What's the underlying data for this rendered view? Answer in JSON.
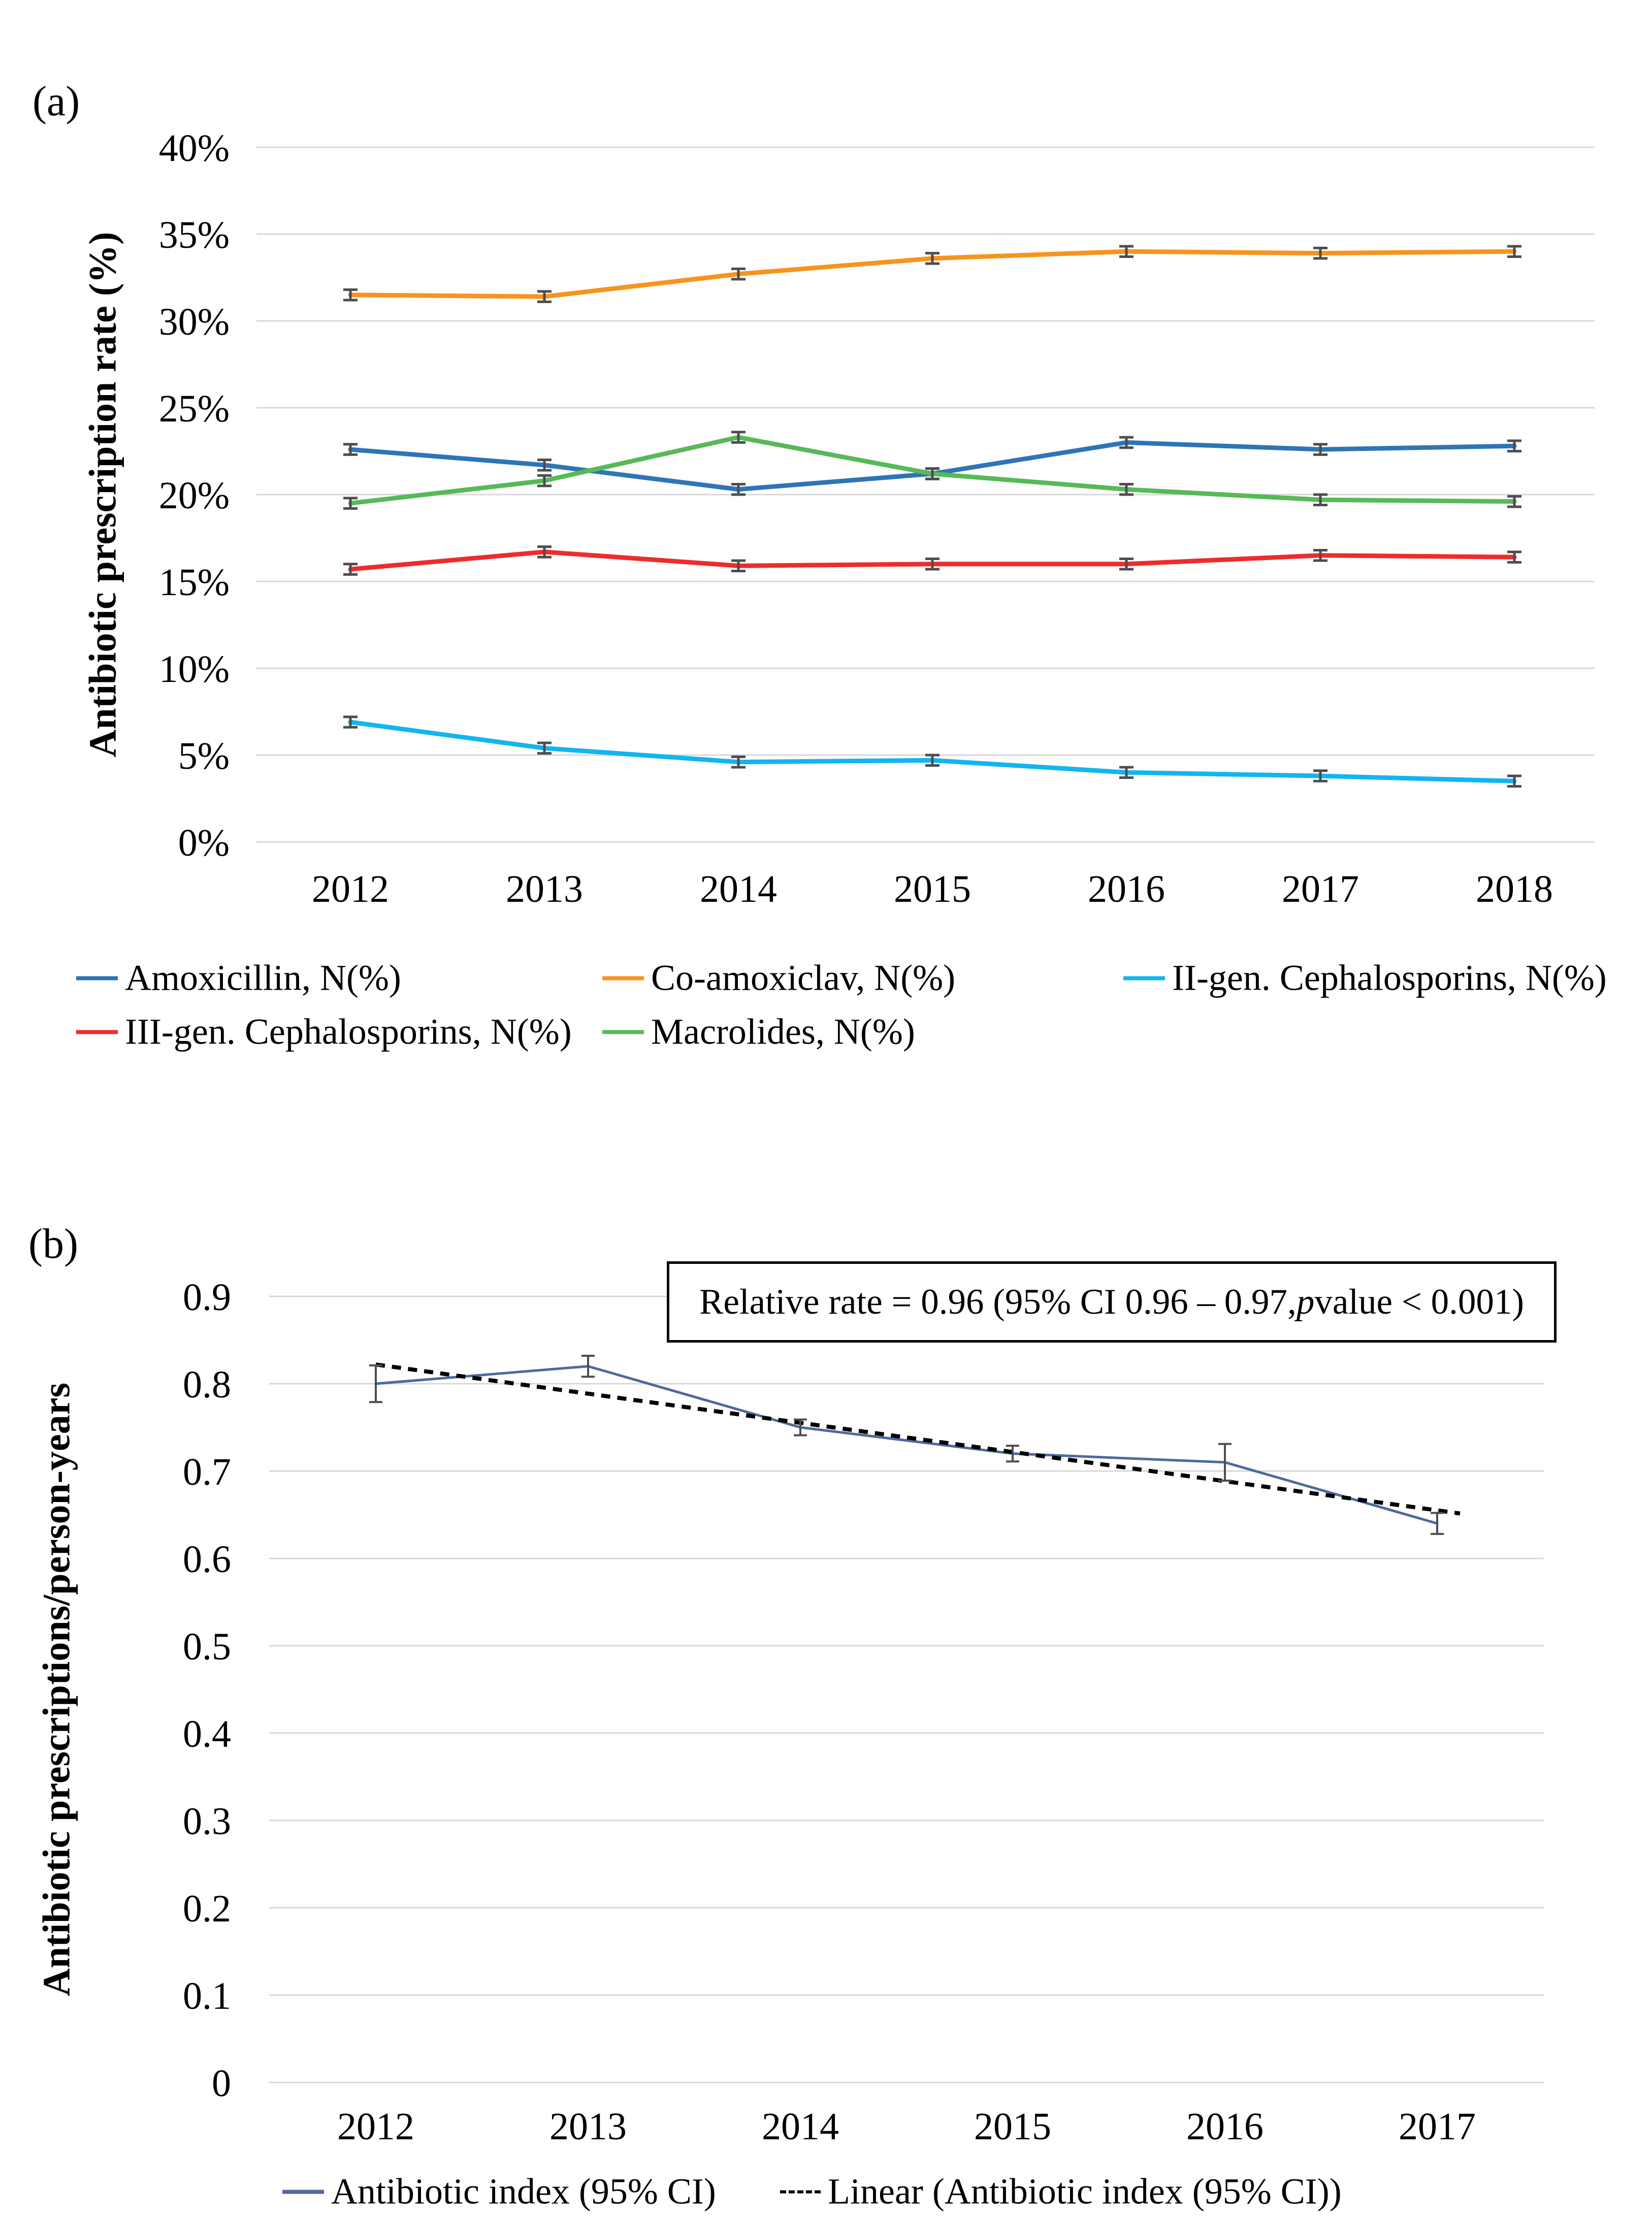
{
  "chart_data": [
    {
      "id": "panel-a",
      "panel_label": "(a)",
      "type": "line",
      "title": "",
      "xlabel": "",
      "ylabel": "Antibiotic prescription rate (%)",
      "x": [
        "2012",
        "2013",
        "2014",
        "2015",
        "2016",
        "2017",
        "2018"
      ],
      "ylim": [
        0,
        40
      ],
      "ytick_labels": [
        "0%",
        "5%",
        "10%",
        "15%",
        "20%",
        "25%",
        "30%",
        "35%",
        "40%"
      ],
      "grid": true,
      "legend_position": "bottom",
      "error_bars": true,
      "series": [
        {
          "name": "Amoxicillin, N(%)",
          "color": "#2E75B6",
          "values": [
            22.6,
            21.7,
            20.3,
            21.2,
            23.0,
            22.6,
            22.8
          ],
          "ci_half": [
            0.3,
            0.3,
            0.3,
            0.3,
            0.3,
            0.3,
            0.3
          ]
        },
        {
          "name": "Co-amoxiclav, N(%)",
          "color": "#F7941E",
          "values": [
            31.5,
            31.4,
            32.7,
            33.6,
            34.0,
            33.9,
            34.0
          ],
          "ci_half": [
            0.3,
            0.3,
            0.3,
            0.3,
            0.3,
            0.3,
            0.3
          ]
        },
        {
          "name": "II-gen. Cephalosporins, N(%)",
          "color": "#12B5F0",
          "values": [
            6.9,
            5.4,
            4.6,
            4.7,
            4.0,
            3.8,
            3.5
          ],
          "ci_half": [
            0.3,
            0.3,
            0.3,
            0.3,
            0.3,
            0.3,
            0.3
          ]
        },
        {
          "name": "III-gen. Cephalosporins, N(%)",
          "color": "#EE2C2C",
          "values": [
            15.7,
            16.7,
            15.9,
            16.0,
            16.0,
            16.5,
            16.4
          ],
          "ci_half": [
            0.3,
            0.3,
            0.3,
            0.3,
            0.3,
            0.3,
            0.3
          ]
        },
        {
          "name": "Macrolides, N(%)",
          "color": "#57B957",
          "values": [
            19.5,
            20.8,
            23.3,
            21.2,
            20.3,
            19.7,
            19.6
          ],
          "ci_half": [
            0.3,
            0.3,
            0.3,
            0.3,
            0.3,
            0.3,
            0.3
          ]
        }
      ]
    },
    {
      "id": "panel-b",
      "panel_label": "(b)",
      "type": "line",
      "title": "",
      "xlabel": "",
      "ylabel": "Antibiotic prescriptions/person-years",
      "x": [
        "2012",
        "2013",
        "2014",
        "2015",
        "2016",
        "2017"
      ],
      "ylim": [
        0,
        0.9
      ],
      "ytick_labels": [
        "0",
        "0.1",
        "0.2",
        "0.3",
        "0.4",
        "0.5",
        "0.6",
        "0.7",
        "0.8",
        "0.9"
      ],
      "grid": true,
      "legend_position": "bottom",
      "error_bars": true,
      "annotation": {
        "prefix": "Relative rate = 0.96 (95% CI 0.96 – 0.97, ",
        "italic": "p",
        "suffix": " value < 0.001)"
      },
      "series": [
        {
          "name": "Antibiotic index (95% CI)",
          "color": "#4D6A9E",
          "values": [
            0.8,
            0.82,
            0.75,
            0.72,
            0.71,
            0.64
          ],
          "ci_half": [
            0.021,
            0.012,
            0.009,
            0.009,
            0.021,
            0.012
          ]
        }
      ],
      "trendline": {
        "name": "Linear (Antibiotic index (95% CI))",
        "color": "#000000",
        "style": "dashed",
        "start_value": 0.822,
        "end_value": 0.655
      }
    }
  ]
}
